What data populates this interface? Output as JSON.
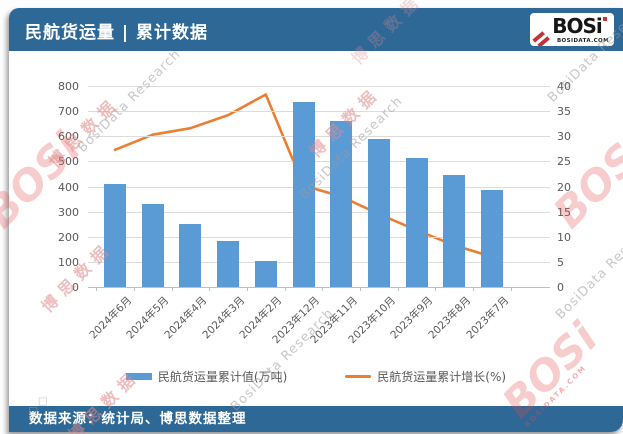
{
  "header": {
    "title": "民航货运量 | 累计数据",
    "logo": {
      "text": "BOSi",
      "subtext": "BOSIDATA.COM"
    }
  },
  "footer": {
    "source": "数据来源：统计局、博思数据整理"
  },
  "legend": {
    "bar_label": "民航货运量累计值(万吨)",
    "line_label": "民航货运量累计增长(%)"
  },
  "watermarks": {
    "cjk": "博思数据",
    "en": "BosiData Research",
    "logo": "BOSi",
    "logo_sub": "BOSIDATA.COM",
    "marks": "◇◇"
  },
  "colors": {
    "banner_blue": "#2d6897",
    "bar_blue": "#5b9bd5",
    "line_orange": "#ed7d31",
    "grid_gray": "#dcdcdc",
    "axis_text": "#595959",
    "watermark_red": "#e08a8a",
    "watermark_gray": "#9a9a9a"
  },
  "chart_data": {
    "type": "bar",
    "subtype": "bar+line combo, dual axis",
    "categories": [
      "2024年6月",
      "2024年5月",
      "2024年4月",
      "2024年3月",
      "2024年2月",
      "2023年12月",
      "2023年11月",
      "2023年10月",
      "2023年9月",
      "2023年8月",
      "2023年7月"
    ],
    "series": [
      {
        "name": "民航货运量累计值(万吨)",
        "type": "bar",
        "axis": "left",
        "color": "#5b9bd5",
        "values": [
          410,
          330,
          250,
          182,
          105,
          735,
          660,
          590,
          515,
          445,
          385
        ]
      },
      {
        "name": "民航货运量累计增长(%)",
        "type": "line",
        "axis": "right",
        "color": "#ed7d31",
        "values": [
          27.3,
          30.3,
          31.6,
          34.2,
          38.3,
          20.2,
          18.0,
          14.5,
          11.3,
          8.3,
          6.0
        ]
      }
    ],
    "left_axis": {
      "min": 0,
      "max": 800,
      "step": 100
    },
    "right_axis": {
      "min": 0,
      "max": 40,
      "step": 5
    },
    "grid": true,
    "legend_position": "bottom"
  }
}
